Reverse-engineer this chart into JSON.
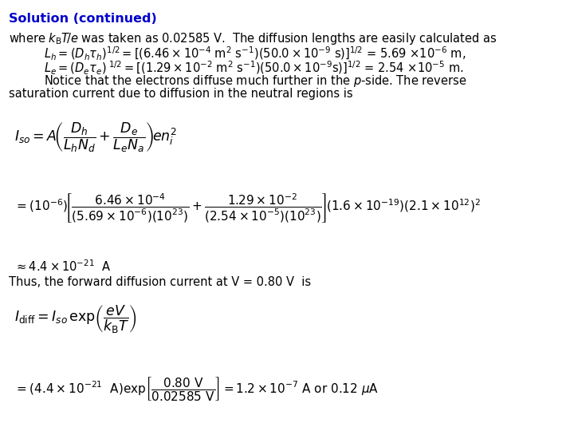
{
  "bg_color": "#ffffff",
  "title_color": "#0000cc",
  "title_fontsize": 11.5,
  "body_fontsize": 10.5,
  "eq_fontsize": 11.0,
  "figsize": [
    7.2,
    5.4
  ],
  "dpi": 100,
  "title": "Solution (continued)",
  "line1": "where $k_\\mathrm{B}T\\!/e$ was taken as 0.02585 V.  The diffusion lengths are easily calculated as",
  "line2": "$L_h = (D_h\\tau_h)^{1/2} = [(6.46 \\times 10^{-4}$ m$^2$ s$^{-1})(50.0 \\times 10^{-9}$ s)$]^{1/2}$ = 5.69 $\\times 10^{-6}$ m,",
  "line3": "$L_e = (D_e\\tau_e)^{\\ 1/2} = [(1.29 \\times 10^{-2}$ m$^2$ s$^{-1})(50.0 \\times 10^{-9}$s)$]^{1/2}$ = 2.54 $\\times 10^{-5}$ m.",
  "line4": "Notice that the electrons diffuse much further in the $p$-side. The reverse",
  "line5": "saturation current due to diffusion in the neutral regions is",
  "eq1": "$I_{so} = A\\!\\left(\\dfrac{D_h}{L_h N_d} + \\dfrac{D_e}{L_e N_a}\\right)\\!en_i^2$",
  "eq2": "$= (10^{-6})\\!\\left[\\dfrac{6.46\\times10^{-4}}{(5.69\\times10^{-6})(10^{23})} + \\dfrac{1.29\\times10^{-2}}{(2.54\\times10^{-5})(10^{23})}\\right]\\!(1.6\\times10^{-19})(2.1\\times10^{12})^2$",
  "approx": "$\\approx 4.4\\times10^{-21}$  A",
  "thus": "Thus, the forward diffusion current at V = 0.80 V  is",
  "eq3": "$I_{\\mathrm{diff}} = I_{so}\\,\\exp\\!\\left(\\dfrac{eV}{k_\\mathrm{B}T}\\right)$",
  "eq4": "$= (4.4\\times10^{-21}$  A$)\\exp\\!\\left[\\dfrac{0.80\\ \\mathrm{V}}{0.02585\\ \\mathrm{V}}\\right] = 1.2\\times10^{-7}$ A or 0.12 $\\mu$A"
}
